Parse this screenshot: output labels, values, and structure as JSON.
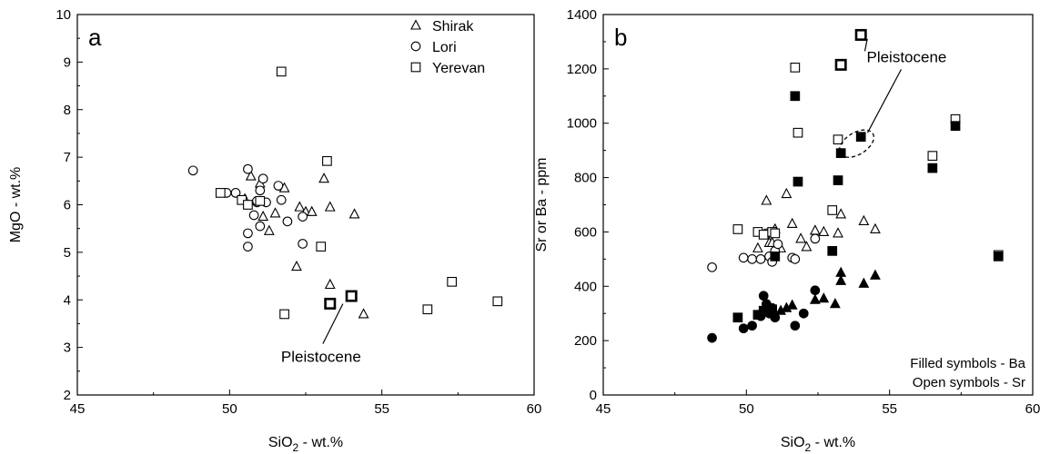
{
  "chart_data": [
    {
      "type": "scatter",
      "panel_label": "a",
      "xlabel": {
        "main": "SiO",
        "sub": "2",
        "rest": " - wt.%"
      },
      "ylabel": "MgO - wt.%",
      "xlim": [
        45,
        60
      ],
      "ylim": [
        2,
        10
      ],
      "x_ticks": [
        "45",
        "50",
        "55",
        "60"
      ],
      "y_ticks": [
        "2",
        "3",
        "4",
        "5",
        "6",
        "7",
        "8",
        "9",
        "10"
      ],
      "legend": {
        "placement": "top-right",
        "entries": [
          "Shirak",
          "Lori",
          "Yerevan"
        ]
      },
      "annotation": {
        "text": "Pleistocene",
        "target": [
          53.9,
          4.07
        ]
      },
      "series": [
        {
          "name": "Shirak",
          "marker": "open-triangle",
          "points": [
            [
              50.5,
              6.12
            ],
            [
              50.7,
              6.6
            ],
            [
              51.0,
              6.45
            ],
            [
              51.1,
              5.75
            ],
            [
              51.3,
              5.45
            ],
            [
              51.5,
              5.82
            ],
            [
              51.8,
              6.35
            ],
            [
              52.2,
              4.7
            ],
            [
              52.3,
              5.95
            ],
            [
              52.5,
              5.85
            ],
            [
              52.7,
              5.85
            ],
            [
              53.1,
              6.55
            ],
            [
              53.3,
              5.95
            ],
            [
              53.3,
              4.32
            ],
            [
              54.1,
              5.8
            ],
            [
              54.4,
              3.7
            ]
          ]
        },
        {
          "name": "Lori",
          "marker": "open-circle",
          "points": [
            [
              48.8,
              6.72
            ],
            [
              49.9,
              6.25
            ],
            [
              50.2,
              6.25
            ],
            [
              50.6,
              6.75
            ],
            [
              50.6,
              5.4
            ],
            [
              50.6,
              5.12
            ],
            [
              50.8,
              5.78
            ],
            [
              50.9,
              6.05
            ],
            [
              50.9,
              6.08
            ],
            [
              51.0,
              6.3
            ],
            [
              51.1,
              6.55
            ],
            [
              51.2,
              6.05
            ],
            [
              51.0,
              5.55
            ],
            [
              51.6,
              6.4
            ],
            [
              51.7,
              6.1
            ],
            [
              51.9,
              5.65
            ],
            [
              52.4,
              5.18
            ],
            [
              52.4,
              5.75
            ]
          ]
        },
        {
          "name": "Yerevan",
          "marker": "open-square",
          "points": [
            [
              49.7,
              6.25
            ],
            [
              50.4,
              6.1
            ],
            [
              50.6,
              6.0
            ],
            [
              51.0,
              6.08
            ],
            [
              51.7,
              8.8
            ],
            [
              51.8,
              3.7
            ],
            [
              53.0,
              5.12
            ],
            [
              53.2,
              6.92
            ],
            [
              53.3,
              3.92
            ],
            [
              54.0,
              4.08
            ],
            [
              56.5,
              3.8
            ],
            [
              57.3,
              4.38
            ],
            [
              58.8,
              3.97
            ]
          ]
        }
      ],
      "pleistocene_points": [
        [
          53.3,
          3.92
        ],
        [
          54.0,
          4.08
        ]
      ]
    },
    {
      "type": "scatter",
      "panel_label": "b",
      "xlabel": {
        "main": "SiO",
        "sub": "2",
        "rest": " - wt.%"
      },
      "ylabel": "Sr or Ba - ppm",
      "xlim": [
        45,
        60
      ],
      "ylim": [
        0,
        1400
      ],
      "x_ticks": [
        "45",
        "50",
        "55",
        "60"
      ],
      "y_ticks": [
        "0",
        "200",
        "400",
        "600",
        "800",
        "1000",
        "1200",
        "1400"
      ],
      "annotation": {
        "text": "Pleistocene",
        "targets": [
          [
            54.0,
            1320
          ],
          [
            53.4,
            895
          ]
        ]
      },
      "notes": [
        "Filled symbols - Ba",
        "Open symbols - Sr"
      ],
      "series": [
        {
          "name": "Shirak Sr",
          "marker": "open-triangle",
          "points": [
            [
              50.4,
              540
            ],
            [
              50.7,
              715
            ],
            [
              50.8,
              560
            ],
            [
              50.9,
              560
            ],
            [
              51.0,
              610
            ],
            [
              51.2,
              540
            ],
            [
              51.4,
              740
            ],
            [
              51.6,
              630
            ],
            [
              51.9,
              575
            ],
            [
              52.1,
              545
            ],
            [
              52.4,
              605
            ],
            [
              52.7,
              600
            ],
            [
              53.2,
              595
            ],
            [
              53.3,
              665
            ],
            [
              54.1,
              640
            ],
            [
              54.5,
              610
            ]
          ]
        },
        {
          "name": "Shirak Ba",
          "marker": "filled-triangle",
          "points": [
            [
              51.2,
              310
            ],
            [
              51.4,
              320
            ],
            [
              51.6,
              330
            ],
            [
              52.4,
              350
            ],
            [
              52.7,
              355
            ],
            [
              53.1,
              335
            ],
            [
              53.3,
              450
            ],
            [
              53.3,
              420
            ],
            [
              54.1,
              410
            ],
            [
              54.5,
              440
            ]
          ]
        },
        {
          "name": "Lori Sr",
          "marker": "open-circle",
          "points": [
            [
              48.8,
              470
            ],
            [
              49.9,
              505
            ],
            [
              50.2,
              500
            ],
            [
              50.5,
              500
            ],
            [
              50.7,
              595
            ],
            [
              50.8,
              510
            ],
            [
              50.9,
              490
            ],
            [
              51.0,
              530
            ],
            [
              51.1,
              555
            ],
            [
              51.6,
              505
            ],
            [
              51.7,
              500
            ],
            [
              52.4,
              575
            ]
          ]
        },
        {
          "name": "Lori Ba",
          "marker": "filled-circle",
          "points": [
            [
              48.8,
              210
            ],
            [
              49.9,
              245
            ],
            [
              50.2,
              255
            ],
            [
              50.5,
              290
            ],
            [
              50.6,
              365
            ],
            [
              50.7,
              335
            ],
            [
              50.8,
              300
            ],
            [
              50.9,
              320
            ],
            [
              51.0,
              285
            ],
            [
              51.7,
              255
            ],
            [
              52.0,
              300
            ],
            [
              52.4,
              385
            ]
          ]
        },
        {
          "name": "Yerevan Sr",
          "marker": "open-square",
          "points": [
            [
              49.7,
              610
            ],
            [
              50.4,
              600
            ],
            [
              50.6,
              590
            ],
            [
              50.9,
              600
            ],
            [
              51.0,
              595
            ],
            [
              51.7,
              1205
            ],
            [
              51.8,
              965
            ],
            [
              53.0,
              680
            ],
            [
              53.2,
              940
            ],
            [
              53.3,
              1215
            ],
            [
              54.0,
              1325
            ],
            [
              56.5,
              880
            ],
            [
              57.3,
              1015
            ],
            [
              58.8,
              515
            ]
          ]
        },
        {
          "name": "Yerevan Ba",
          "marker": "filled-square",
          "points": [
            [
              49.7,
              285
            ],
            [
              50.4,
              295
            ],
            [
              50.6,
              310
            ],
            [
              50.9,
              315
            ],
            [
              51.0,
              510
            ],
            [
              51.7,
              1100
            ],
            [
              51.8,
              785
            ],
            [
              53.0,
              530
            ],
            [
              53.2,
              790
            ],
            [
              53.3,
              890
            ],
            [
              54.0,
              950
            ],
            [
              56.5,
              835
            ],
            [
              57.3,
              990
            ],
            [
              58.8,
              510
            ]
          ]
        }
      ],
      "pleistocene_points": [
        [
          53.3,
          1215
        ],
        [
          54.0,
          1325
        ]
      ]
    }
  ]
}
